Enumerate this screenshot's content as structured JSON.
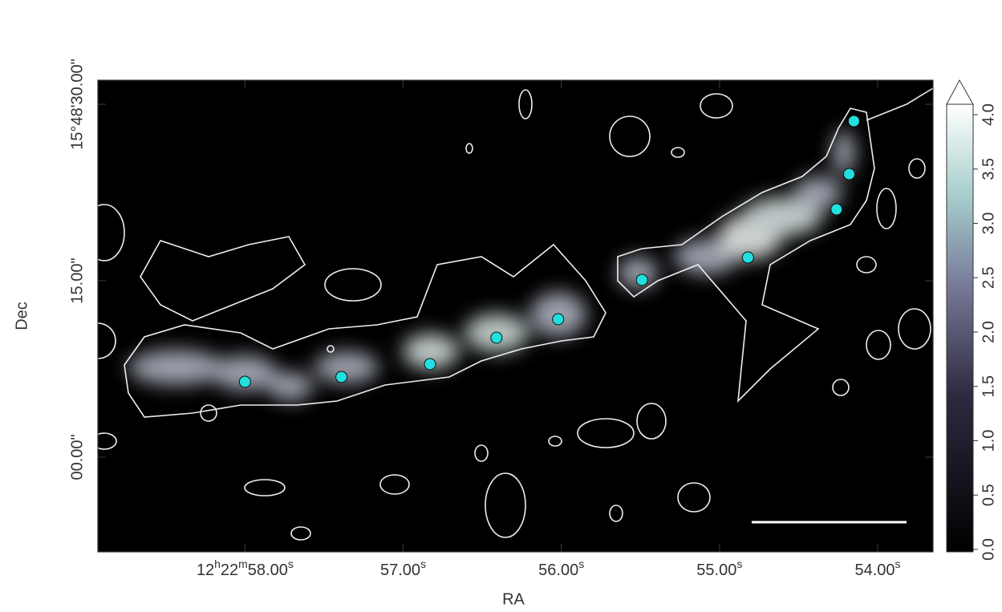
{
  "chart_data": {
    "type": "scatter",
    "xlabel": "RA",
    "ylabel": "Dec",
    "xlim": [
      58.93,
      53.65
    ],
    "ylim": [
      -8.05,
      32.05
    ],
    "xticks": [
      {
        "value": 58,
        "label": "12h22m58.00s"
      },
      {
        "value": 57,
        "label": "57.00s"
      },
      {
        "value": 56,
        "label": "56.00s"
      },
      {
        "value": 55,
        "label": "55.00s"
      },
      {
        "value": 54,
        "label": "54.00s"
      }
    ],
    "yticks": [
      {
        "value": 30,
        "label": "15°48'30.00\""
      },
      {
        "value": 15,
        "label": "15.00\""
      },
      {
        "value": 0,
        "label": "00.00\""
      }
    ],
    "colorbar": {
      "lim": [
        0,
        4.0
      ],
      "ticks": [
        {
          "value": 0,
          "label": "0.0"
        },
        {
          "value": 0.5,
          "label": "0.5"
        },
        {
          "value": 1,
          "label": "1.0"
        },
        {
          "value": 1.5,
          "label": "1.5"
        },
        {
          "value": 2,
          "label": "2.0"
        },
        {
          "value": 2.5,
          "label": "2.5"
        },
        {
          "value": 3,
          "label": "3.0"
        },
        {
          "value": 3.5,
          "label": "3.5"
        },
        {
          "value": 4,
          "label": "4.0"
        }
      ]
    },
    "series": [
      {
        "color": "#22e0e0",
        "x": [
          58.0,
          57.39,
          56.83,
          56.41,
          56.02,
          55.49,
          54.82,
          54.26,
          54.18,
          54.15
        ],
        "y": [
          6.41,
          6.82,
          7.91,
          10.16,
          11.73,
          15.07,
          16.98,
          21.07,
          24.07,
          28.57
        ]
      }
    ]
  }
}
